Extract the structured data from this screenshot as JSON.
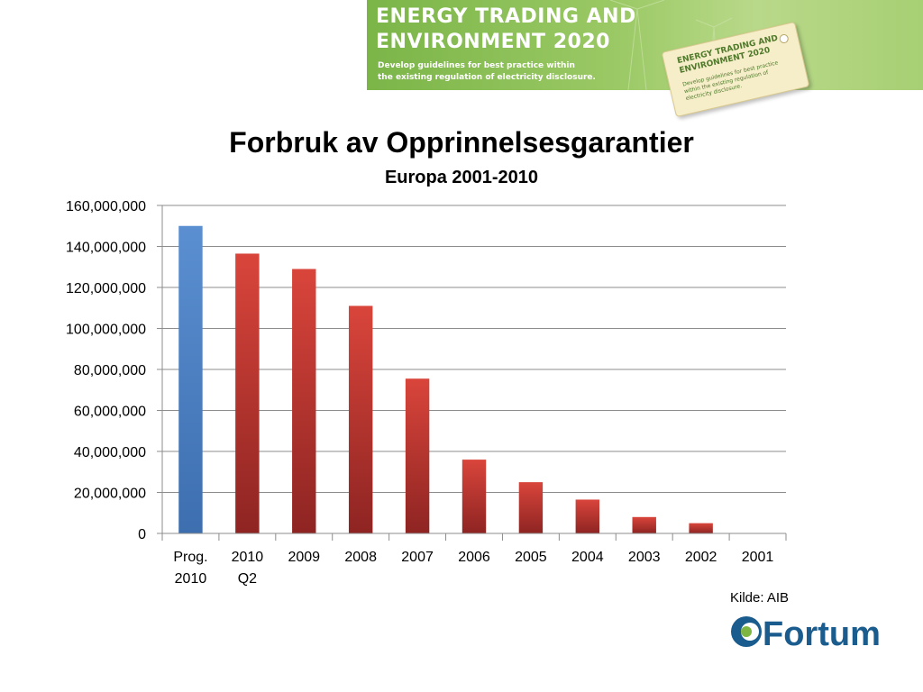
{
  "banner": {
    "title_line1": "ENERGY TRADING AND",
    "title_line2": "ENVIRONMENT 2020",
    "sub_line1": "Develop guidelines for best practice within",
    "sub_line2": "the existing regulation of electricity disclosure.",
    "tag_line1": "ENERGY TRADING AND",
    "tag_line2": "ENVIRONMENT 2020",
    "tag_sub": "Develop guidelines for best practice within the existing regulation of electricity disclosure."
  },
  "chart_data": {
    "type": "bar",
    "title": "Forbruk av Opprinnelsesgarantier",
    "subtitle": "Europa 2001-2010",
    "categories": [
      [
        "Prog.",
        "2010"
      ],
      [
        "2010",
        "Q2"
      ],
      [
        "2009"
      ],
      [
        "2008"
      ],
      [
        "2007"
      ],
      [
        "2006"
      ],
      [
        "2005"
      ],
      [
        "2004"
      ],
      [
        "2003"
      ],
      [
        "2002"
      ],
      [
        "2001"
      ]
    ],
    "values": [
      150000000,
      136500000,
      129000000,
      111000000,
      75500000,
      36000000,
      25000000,
      16500000,
      8000000,
      5000000,
      0
    ],
    "bar_colors": [
      "#4f81bd",
      "#c0392b",
      "#c0392b",
      "#c0392b",
      "#c0392b",
      "#c0392b",
      "#c0392b",
      "#c0392b",
      "#c0392b",
      "#c0392b",
      "#c0392b"
    ],
    "ylim": [
      0,
      160000000
    ],
    "yticks": [
      0,
      20000000,
      40000000,
      60000000,
      80000000,
      100000000,
      120000000,
      140000000,
      160000000
    ],
    "ytick_labels": [
      "0",
      "20,000,000",
      "40,000,000",
      "60,000,000",
      "80,000,000",
      "100,000,000",
      "120,000,000",
      "140,000,000",
      "160,000,000"
    ],
    "grid": true,
    "xlabel": "",
    "ylabel": ""
  },
  "source": "Kilde: AIB",
  "brand": {
    "name": "Fortum",
    "color": "#1a5c8e",
    "accent": "#7fb641"
  }
}
